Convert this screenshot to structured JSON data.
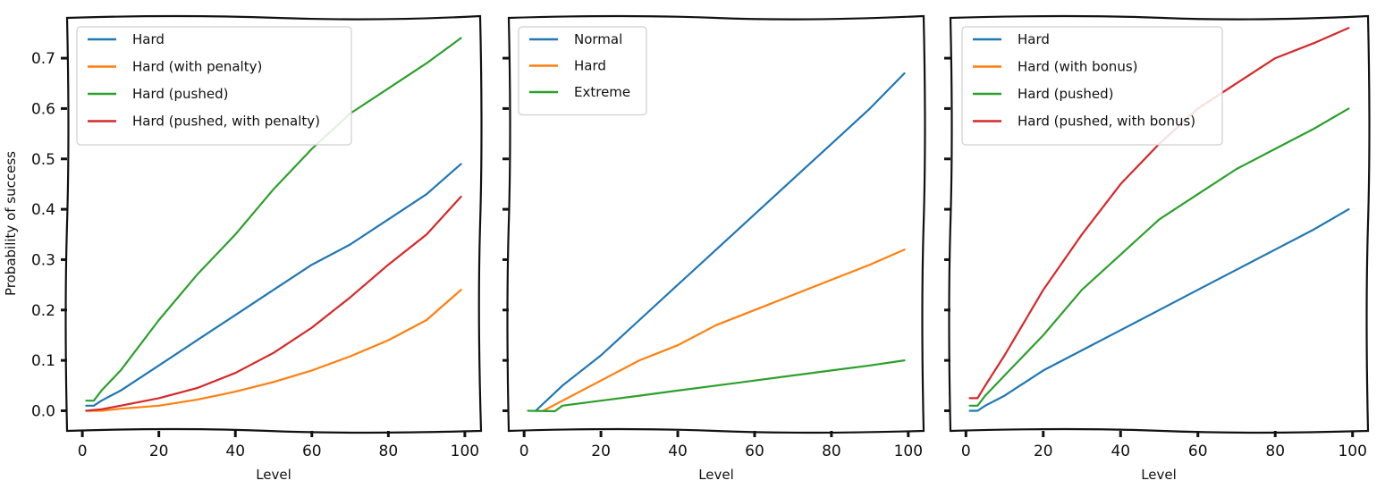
{
  "chart_data": [
    {
      "type": "line",
      "title": "",
      "xlabel": "Level",
      "ylabel": "Probability of success",
      "xlim": [
        -4,
        104
      ],
      "ylim": [
        -0.04,
        0.78
      ],
      "xticks": [
        0,
        20,
        40,
        60,
        80,
        100
      ],
      "xtick_labels": [
        "0",
        "20",
        "40",
        "60",
        "80",
        "100"
      ],
      "yticks": [
        0.0,
        0.1,
        0.2,
        0.3,
        0.4,
        0.5,
        0.6,
        0.7
      ],
      "ytick_labels": [
        "0.0",
        "0.1",
        "0.2",
        "0.3",
        "0.4",
        "0.5",
        "0.6",
        "0.7"
      ],
      "legend_position": "top-left",
      "grid": false,
      "series": [
        {
          "name": "Hard",
          "color": "#1f77b4",
          "points": [
            [
              1,
              0.01
            ],
            [
              3,
              0.01
            ],
            [
              5,
              0.02
            ],
            [
              10,
              0.04
            ],
            [
              20,
              0.09
            ],
            [
              30,
              0.14
            ],
            [
              40,
              0.19
            ],
            [
              50,
              0.24
            ],
            [
              60,
              0.29
            ],
            [
              70,
              0.33
            ],
            [
              80,
              0.38
            ],
            [
              90,
              0.43
            ],
            [
              99,
              0.49
            ]
          ]
        },
        {
          "name": "Hard (with penalty)",
          "color": "#ff7f0e",
          "points": [
            [
              1,
              0.0
            ],
            [
              5,
              0.0
            ],
            [
              10,
              0.004
            ],
            [
              20,
              0.01
            ],
            [
              30,
              0.022
            ],
            [
              40,
              0.038
            ],
            [
              50,
              0.057
            ],
            [
              60,
              0.08
            ],
            [
              70,
              0.108
            ],
            [
              80,
              0.14
            ],
            [
              90,
              0.18
            ],
            [
              99,
              0.24
            ]
          ]
        },
        {
          "name": "Hard (pushed)",
          "color": "#2ca02c",
          "points": [
            [
              1,
              0.02
            ],
            [
              3,
              0.02
            ],
            [
              5,
              0.04
            ],
            [
              10,
              0.08
            ],
            [
              20,
              0.18
            ],
            [
              30,
              0.27
            ],
            [
              40,
              0.35
            ],
            [
              50,
              0.44
            ],
            [
              60,
              0.52
            ],
            [
              70,
              0.59
            ],
            [
              80,
              0.64
            ],
            [
              90,
              0.69
            ],
            [
              99,
              0.74
            ]
          ]
        },
        {
          "name": "Hard (pushed, with penalty)",
          "color": "#d62728",
          "points": [
            [
              1,
              0.0
            ],
            [
              5,
              0.003
            ],
            [
              10,
              0.01
            ],
            [
              20,
              0.025
            ],
            [
              30,
              0.045
            ],
            [
              40,
              0.075
            ],
            [
              50,
              0.115
            ],
            [
              60,
              0.165
            ],
            [
              70,
              0.225
            ],
            [
              80,
              0.29
            ],
            [
              90,
              0.35
            ],
            [
              99,
              0.425
            ]
          ]
        }
      ]
    },
    {
      "type": "line",
      "title": "",
      "xlabel": "Level",
      "ylabel": "",
      "xlim": [
        -4,
        104
      ],
      "ylim": [
        -0.04,
        0.78
      ],
      "xticks": [
        0,
        20,
        40,
        60,
        80,
        100
      ],
      "xtick_labels": [
        "0",
        "20",
        "40",
        "60",
        "80",
        "100"
      ],
      "yticks": [
        0.0,
        0.1,
        0.2,
        0.3,
        0.4,
        0.5,
        0.6,
        0.7
      ],
      "ytick_labels": [],
      "legend_position": "top-left",
      "grid": false,
      "series": [
        {
          "name": "Normal",
          "color": "#1f77b4",
          "points": [
            [
              3,
              0.0
            ],
            [
              10,
              0.05
            ],
            [
              20,
              0.11
            ],
            [
              30,
              0.18
            ],
            [
              40,
              0.25
            ],
            [
              50,
              0.32
            ],
            [
              60,
              0.39
            ],
            [
              70,
              0.46
            ],
            [
              80,
              0.53
            ],
            [
              90,
              0.6
            ],
            [
              99,
              0.67
            ]
          ]
        },
        {
          "name": "Hard",
          "color": "#ff7f0e",
          "points": [
            [
              5,
              0.0
            ],
            [
              10,
              0.02
            ],
            [
              20,
              0.06
            ],
            [
              30,
              0.1
            ],
            [
              40,
              0.13
            ],
            [
              50,
              0.17
            ],
            [
              60,
              0.2
            ],
            [
              70,
              0.23
            ],
            [
              80,
              0.26
            ],
            [
              90,
              0.29
            ],
            [
              99,
              0.32
            ]
          ]
        },
        {
          "name": "Extreme",
          "color": "#2ca02c",
          "points": [
            [
              1,
              0.0
            ],
            [
              8,
              -0.001
            ],
            [
              10,
              0.01
            ],
            [
              20,
              0.02
            ],
            [
              30,
              0.03
            ],
            [
              40,
              0.04
            ],
            [
              50,
              0.05
            ],
            [
              60,
              0.06
            ],
            [
              70,
              0.07
            ],
            [
              80,
              0.08
            ],
            [
              90,
              0.09
            ],
            [
              99,
              0.1
            ]
          ]
        }
      ]
    },
    {
      "type": "line",
      "title": "",
      "xlabel": "Level",
      "ylabel": "",
      "xlim": [
        -4,
        104
      ],
      "ylim": [
        -0.04,
        0.78
      ],
      "xticks": [
        0,
        20,
        40,
        60,
        80,
        100
      ],
      "xtick_labels": [
        "0",
        "20",
        "40",
        "60",
        "80",
        "100"
      ],
      "yticks": [
        0.0,
        0.1,
        0.2,
        0.3,
        0.4,
        0.5,
        0.6,
        0.7
      ],
      "ytick_labels": [],
      "legend_position": "top-left",
      "grid": false,
      "series": [
        {
          "name": "Hard",
          "color": "#1f77b4",
          "points": [
            [
              1,
              0.0
            ],
            [
              3,
              0.0
            ],
            [
              5,
              0.01
            ],
            [
              10,
              0.03
            ],
            [
              20,
              0.08
            ],
            [
              30,
              0.12
            ],
            [
              40,
              0.16
            ],
            [
              50,
              0.2
            ],
            [
              60,
              0.24
            ],
            [
              70,
              0.28
            ],
            [
              80,
              0.32
            ],
            [
              90,
              0.36
            ],
            [
              99,
              0.4
            ]
          ]
        },
        {
          "name": "Hard (with bonus)",
          "color": "#ff7f0e",
          "points": []
        },
        {
          "name": "Hard (pushed)",
          "color": "#2ca02c",
          "points": [
            [
              1,
              0.01
            ],
            [
              3,
              0.01
            ],
            [
              5,
              0.03
            ],
            [
              10,
              0.07
            ],
            [
              20,
              0.15
            ],
            [
              30,
              0.24
            ],
            [
              40,
              0.31
            ],
            [
              50,
              0.38
            ],
            [
              60,
              0.43
            ],
            [
              70,
              0.48
            ],
            [
              80,
              0.52
            ],
            [
              90,
              0.56
            ],
            [
              99,
              0.6
            ]
          ]
        },
        {
          "name": "Hard (pushed, with bonus)",
          "color": "#d62728",
          "points": [
            [
              1,
              0.025
            ],
            [
              3,
              0.025
            ],
            [
              5,
              0.05
            ],
            [
              10,
              0.11
            ],
            [
              20,
              0.24
            ],
            [
              30,
              0.35
            ],
            [
              40,
              0.45
            ],
            [
              50,
              0.53
            ],
            [
              60,
              0.6
            ],
            [
              70,
              0.65
            ],
            [
              80,
              0.7
            ],
            [
              90,
              0.73
            ],
            [
              99,
              0.76
            ]
          ]
        }
      ]
    }
  ]
}
